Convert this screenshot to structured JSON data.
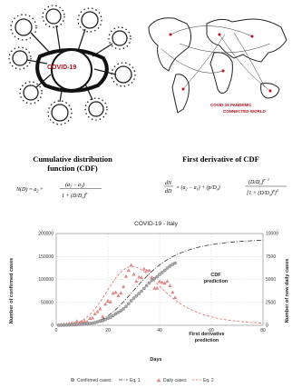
{
  "illustrations": {
    "virus_label": "COVID-19",
    "world_caption_line1": "COVID-19 PANDEMIC",
    "world_caption_line2": "CONNECTED WORLD"
  },
  "formulas": {
    "cdf_title_line1": "Cumulative distribution",
    "cdf_title_line2": "function (CDF)",
    "derivative_title": "First derivative of CDF"
  },
  "chart_data": {
    "type": "line",
    "title": "COVID-19 - Italy",
    "xlabel": "Days",
    "ylabel": "Number of confirmed cases",
    "y2label": "Number of new daily cases",
    "xlim": [
      0,
      80
    ],
    "ylim": [
      0,
      200000
    ],
    "y2lim": [
      0,
      10000
    ],
    "xticks": [
      0,
      20,
      40,
      60,
      80
    ],
    "yticks": [
      0,
      50000,
      100000,
      150000,
      200000
    ],
    "y2ticks": [
      0,
      2500,
      5000,
      7500,
      10000
    ],
    "grid": true,
    "legend_position": "bottom",
    "annotations": {
      "cdf_line1": "CDF",
      "cdf_line2": "prediction",
      "deriv_line1": "First derivative",
      "deriv_line2": "prediction"
    },
    "series": [
      {
        "name": "Confirmed cases",
        "axis": "left",
        "marker": "circle",
        "color": "#777777",
        "x": [
          1,
          2,
          3,
          4,
          5,
          6,
          7,
          8,
          9,
          10,
          11,
          12,
          13,
          14,
          15,
          16,
          17,
          18,
          19,
          20,
          21,
          22,
          23,
          24,
          25,
          26,
          27,
          28,
          29,
          30,
          31,
          32,
          33,
          34,
          35,
          36,
          37,
          38,
          39,
          40,
          41,
          42,
          43,
          44,
          45,
          46
        ],
        "y": [
          150,
          230,
          320,
          450,
          650,
          890,
          1130,
          1580,
          1830,
          2250,
          2700,
          3100,
          3850,
          4650,
          5900,
          7400,
          9200,
          10150,
          12460,
          15110,
          17660,
          21160,
          24750,
          27980,
          31500,
          35710,
          41040,
          47020,
          53580,
          59140,
          63930,
          69180,
          74390,
          80540,
          86500,
          92470,
          97690,
          101740,
          105790,
          110570,
          115240,
          119830,
          124630,
          128950,
          132550,
          135580
        ]
      },
      {
        "name": "Eq. 1",
        "axis": "left",
        "style": "dash-dot",
        "color": "#333333"
      },
      {
        "name": "Daily cases",
        "axis": "right",
        "marker": "triangle",
        "color": "#e07070",
        "x": [
          1,
          2,
          3,
          4,
          5,
          6,
          7,
          8,
          9,
          10,
          11,
          12,
          13,
          14,
          15,
          16,
          17,
          18,
          19,
          20,
          21,
          22,
          23,
          24,
          25,
          26,
          27,
          28,
          29,
          30,
          31,
          32,
          33,
          34,
          35,
          36,
          37,
          38,
          39,
          40,
          41,
          42,
          43,
          44,
          45,
          46
        ],
        "y": [
          50,
          80,
          90,
          130,
          200,
          240,
          240,
          450,
          250,
          420,
          450,
          400,
          750,
          800,
          1250,
          1500,
          1800,
          950,
          2310,
          2650,
          2550,
          3500,
          3590,
          3230,
          3520,
          4210,
          5330,
          5980,
          6560,
          5560,
          4790,
          5250,
          5210,
          6150,
          5960,
          5970,
          5220,
          4050,
          4050,
          4780,
          4670,
          4590,
          4800,
          4320,
          3600,
          3030
        ]
      },
      {
        "name": "Eq. 2",
        "axis": "right",
        "style": "dashed",
        "color": "#e07070"
      }
    ]
  }
}
